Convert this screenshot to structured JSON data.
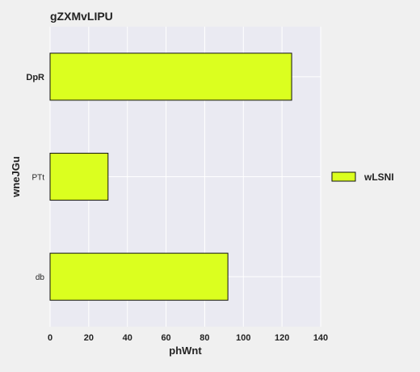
{
  "chart_data": {
    "type": "bar",
    "orientation": "horizontal",
    "title": "gZXMvLIPU",
    "xlabel": "phWnt",
    "ylabel": "wneJGu",
    "categories": [
      "DpR",
      "PTt",
      "db"
    ],
    "series": [
      {
        "name": "wLSNI",
        "values": [
          125,
          30,
          92
        ]
      }
    ],
    "xlim": [
      0,
      140
    ],
    "xticks": [
      0,
      20,
      40,
      60,
      80,
      100,
      120,
      140
    ],
    "grid": true,
    "legend_position": "right",
    "colors": {
      "bar": "#dbff1f",
      "bar_edge": "#111111",
      "plot_bg": "#eaeaf2",
      "page_bg": "#f0f0f0",
      "grid": "#ffffff"
    }
  }
}
